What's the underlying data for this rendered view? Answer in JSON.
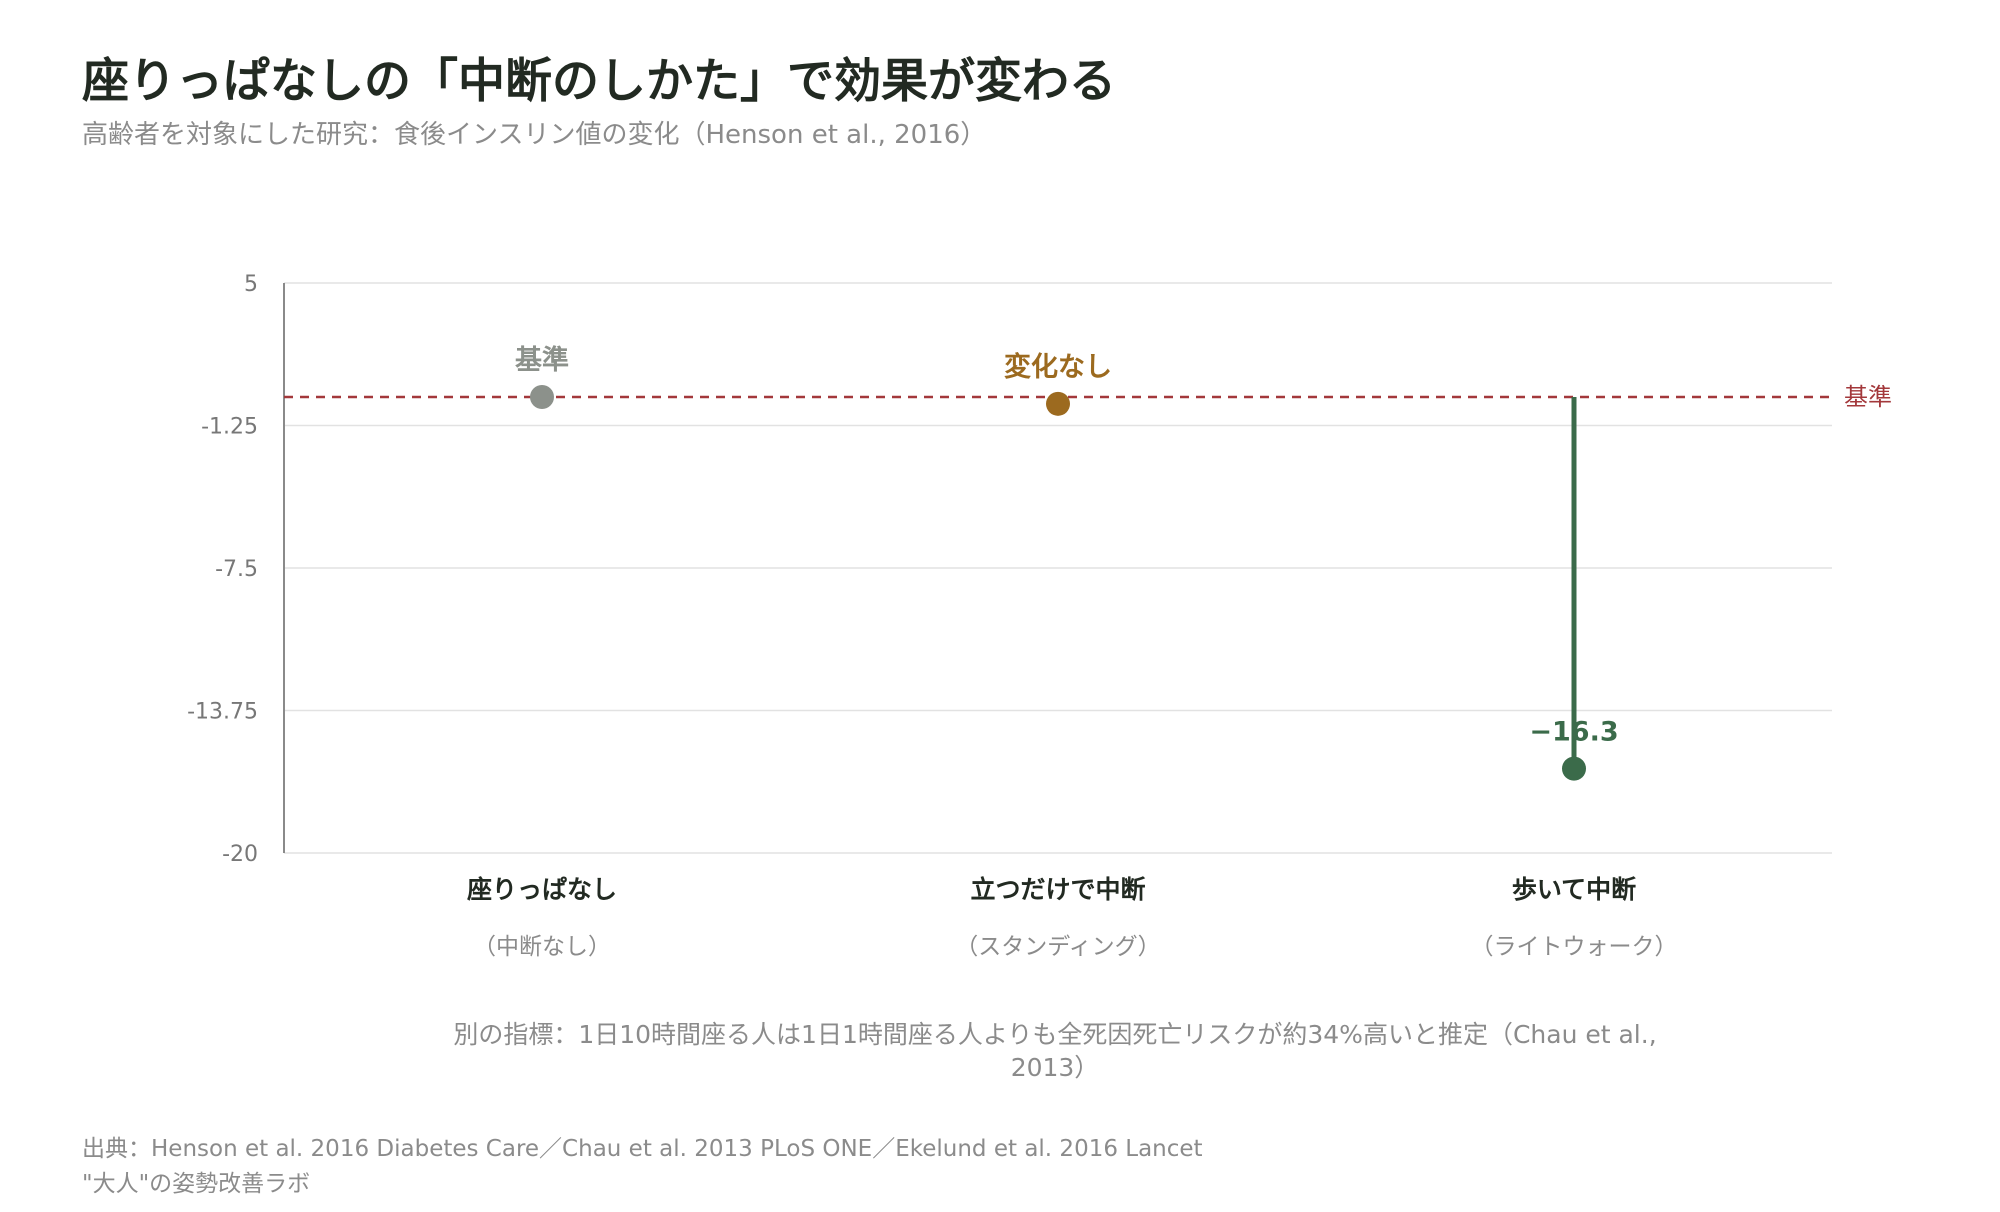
{
  "title": "座りっぱなしの「中断のしかた」で効果が変わる",
  "subtitle": "高齢者を対象にした研究：食後インスリン値の変化（Henson et al., 2016）",
  "note": "別の指標：1日10時間座る人は1日1時間座る人よりも全死因死亡リスクが約34%高いと推定（Chau et al., 2013）",
  "source": "出典：Henson et al. 2016 Diabetes Care／Chau et al. 2013 PLoS ONE／Ekelund et al. 2016 Lancet",
  "brand": "\"大人\"の姿勢改善ラボ",
  "colors": {
    "baseline": "#a3383b",
    "sitting": "#8c918b",
    "standing": "#9c6a1f",
    "walking": "#3b6b4a",
    "grid": "#e2e2e2",
    "axis": "#8a8a8a",
    "tick_text": "#777777"
  },
  "chart_data": {
    "type": "scatter",
    "ylim": [
      -20,
      5
    ],
    "yticks": [
      "5",
      "-1.25",
      "-7.5",
      "-13.75",
      "-20"
    ],
    "ytick_values": [
      5,
      -1.25,
      -7.5,
      -13.75,
      -20
    ],
    "baseline_value": 0,
    "baseline_label": "基準",
    "grid": true,
    "categories": [
      {
        "label": "座りっぱなし",
        "sublabel": "（中断なし）",
        "value": 0,
        "point_label": "基準",
        "color": "#8c918b",
        "stem": false
      },
      {
        "label": "立つだけで中断",
        "sublabel": "（スタンディング）",
        "value": -0.3,
        "point_label": "変化なし",
        "color": "#9c6a1f",
        "stem": false
      },
      {
        "label": "歩いて中断",
        "sublabel": "（ライトウォーク）",
        "value": -16.3,
        "point_label": "−16.3",
        "color": "#3b6b4a",
        "stem": true
      }
    ]
  }
}
